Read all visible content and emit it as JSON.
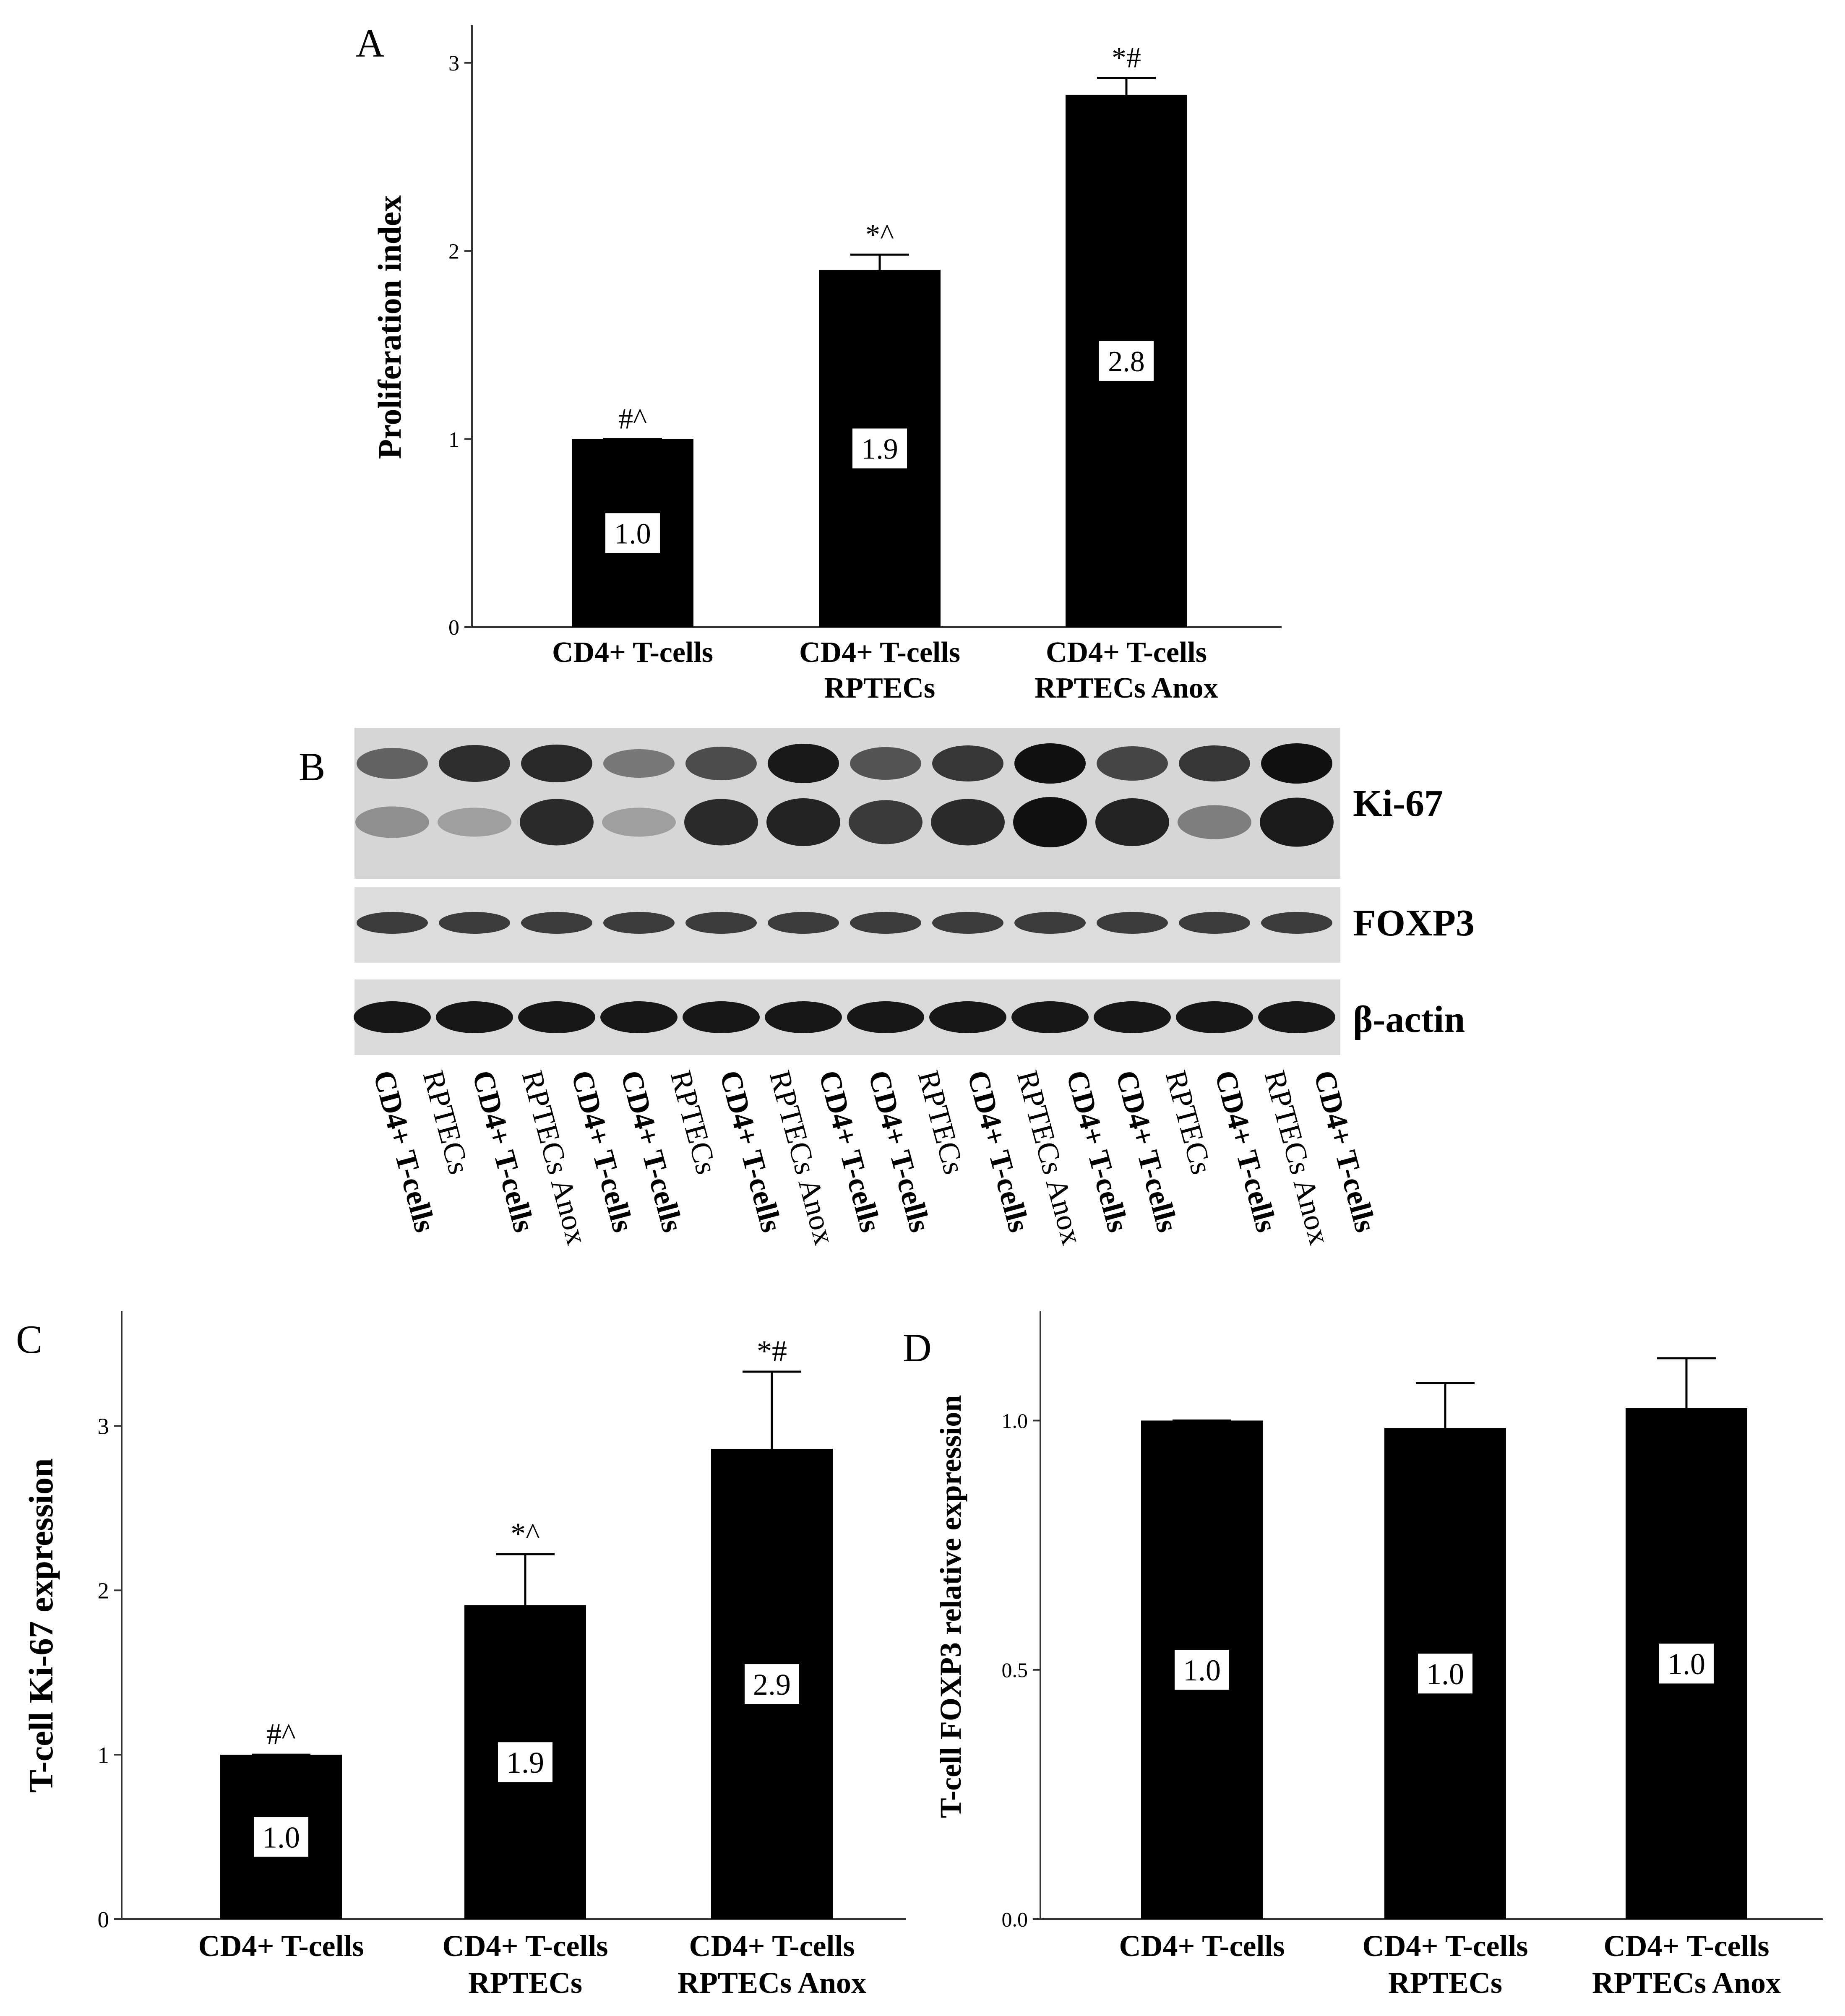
{
  "chart_data": [
    {
      "panel": "A",
      "type": "bar",
      "ylabel": "Proliferation index",
      "ylim": [
        0,
        3.2
      ],
      "yticks": [
        0,
        1,
        2,
        3
      ],
      "categories": [
        [
          "CD4+ T-cells"
        ],
        [
          "CD4+ T-cells",
          "RPTECs"
        ],
        [
          "CD4+ T-cells",
          "RPTECs Anox"
        ]
      ],
      "values": [
        1.0,
        1.9,
        2.83
      ],
      "errors": [
        0.0,
        0.08,
        0.09
      ],
      "value_labels": [
        "1.0",
        "1.9",
        "2.8"
      ],
      "significance": [
        "#^",
        "*^",
        "*#"
      ]
    },
    {
      "panel": "C",
      "type": "bar",
      "ylabel": "T-cell Ki-67 expression",
      "ylim": [
        0,
        3.7
      ],
      "yticks": [
        0,
        1,
        2,
        3
      ],
      "categories": [
        [
          "CD4+ T-cells"
        ],
        [
          "CD4+ T-cells",
          "RPTECs"
        ],
        [
          "CD4+ T-cells",
          "RPTECs Anox"
        ]
      ],
      "values": [
        1.0,
        1.91,
        2.86
      ],
      "errors": [
        0.0,
        0.31,
        0.47
      ],
      "value_labels": [
        "1.0",
        "1.9",
        "2.9"
      ],
      "significance": [
        "#^",
        "*^",
        "*#"
      ]
    },
    {
      "panel": "D",
      "type": "bar",
      "ylabel": "T-cell FOXP3 relative expression",
      "ylim": [
        0,
        1.22
      ],
      "yticks": [
        "0.0",
        "0.5",
        "1.0"
      ],
      "categories": [
        [
          "CD4+ T-cells"
        ],
        [
          "CD4+ T-cells",
          "RPTECs"
        ],
        [
          "CD4+ T-cells",
          "RPTECs Anox"
        ]
      ],
      "values": [
        1.0,
        0.985,
        1.025
      ],
      "errors": [
        0.0,
        0.09,
        0.1
      ],
      "value_labels": [
        "1.0",
        "1.0",
        "1.0"
      ],
      "significance": [
        "",
        "",
        ""
      ]
    }
  ],
  "blot": {
    "panel": "B",
    "rows": [
      "Ki-67",
      "FOXP3",
      "β-actin"
    ],
    "lanes": [
      {
        "line1": "CD4+",
        "line2": "T-cells",
        "kind": "control"
      },
      {
        "line1": "RPTECs",
        "line2": "",
        "kind": "rptec"
      },
      {
        "line1": "CD4+",
        "line2": "T-cells",
        "kind": "control"
      },
      {
        "line1": "RPTECs Anox",
        "line2": "",
        "kind": "anox"
      },
      {
        "line1": "CD4+",
        "line2": "T-cells",
        "kind": "control"
      },
      {
        "line1": "CD4+",
        "line2": "T-cells",
        "kind": "control"
      },
      {
        "line1": "RPTECs",
        "line2": "",
        "kind": "rptec"
      },
      {
        "line1": "CD4+",
        "line2": "T-cells",
        "kind": "control"
      },
      {
        "line1": "RPTECs Anox",
        "line2": "",
        "kind": "anox"
      },
      {
        "line1": "CD4+",
        "line2": "T-cells",
        "kind": "control"
      },
      {
        "line1": "CD4+",
        "line2": "T-cells",
        "kind": "control"
      },
      {
        "line1": "RPTECs",
        "line2": "",
        "kind": "rptec"
      },
      {
        "line1": "CD4+",
        "line2": "T-cells",
        "kind": "control"
      },
      {
        "line1": "RPTECs Anox",
        "line2": "",
        "kind": "anox"
      },
      {
        "line1": "CD4+",
        "line2": "T-cells",
        "kind": "control"
      },
      {
        "line1": "CD4+",
        "line2": "T-cells",
        "kind": "control"
      },
      {
        "line1": "RPTECs",
        "line2": "",
        "kind": "rptec"
      },
      {
        "line1": "CD4+",
        "line2": "T-cells",
        "kind": "control"
      },
      {
        "line1": "RPTECs Anox",
        "line2": "",
        "kind": "anox"
      },
      {
        "line1": "CD4+",
        "line2": "T-cells",
        "kind": "control"
      }
    ]
  },
  "colors": {
    "bar": "#000000",
    "axis": "#333333",
    "blot_bg": "#d8d8d8",
    "band": "#1a1a1a"
  }
}
